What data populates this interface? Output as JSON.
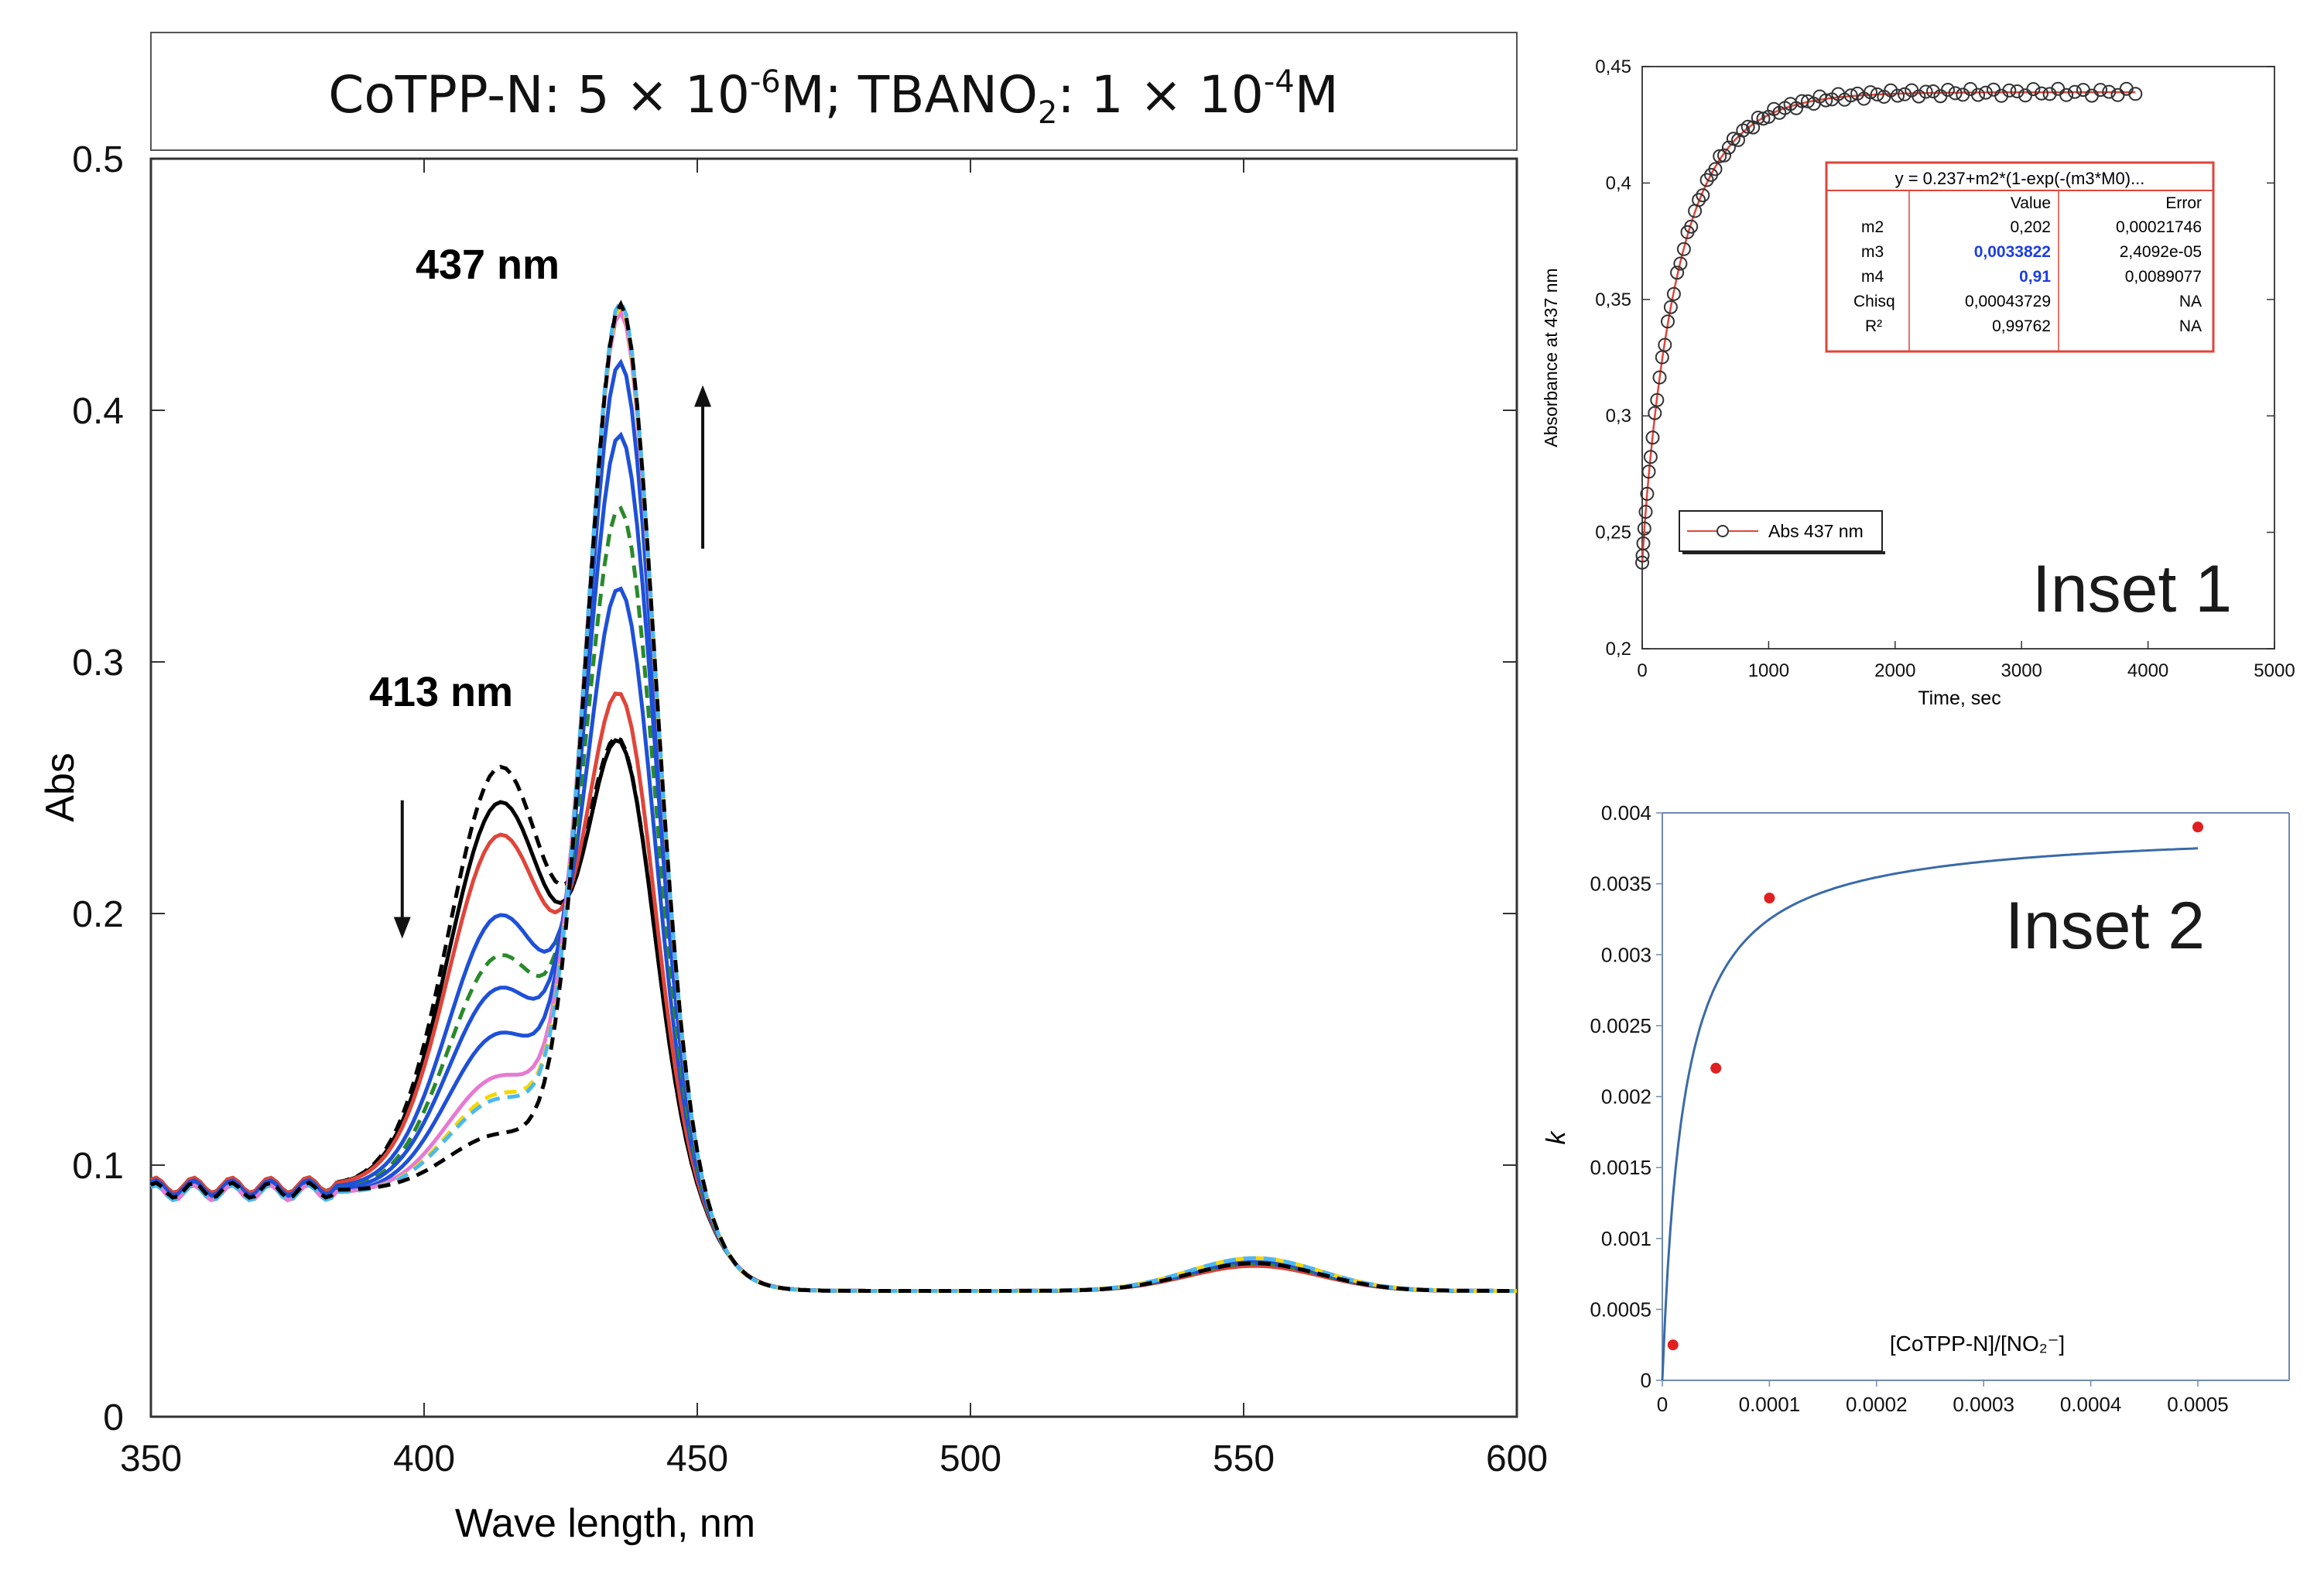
{
  "chart_data": [
    {
      "id": "main",
      "type": "line",
      "title_prefix": "CoTPP-N:  5 × 10",
      "title_exp1": "-6",
      "title_mid": "M;  TBANO",
      "title_sub": "2",
      "title_mid2": ": 1 × 10",
      "title_exp2": "-4",
      "title_suffix": "M",
      "xlabel": "Wave length, nm",
      "ylabel": "Abs",
      "xlim": [
        350,
        600
      ],
      "ylim": [
        0,
        0.5
      ],
      "xticks": [
        350,
        400,
        450,
        500,
        550,
        600
      ],
      "yticks": [
        0,
        0.1,
        0.2,
        0.3,
        0.4,
        0.5
      ],
      "xtick_labels": [
        "350",
        "400",
        "450",
        "500",
        "550",
        "600"
      ],
      "ytick_labels": [
        "0",
        "0.1",
        "0.2",
        "0.3",
        "0.4",
        "0.5"
      ],
      "annotations": [
        {
          "text": "437 nm",
          "x": 435,
          "y": 0.455
        },
        {
          "text": "413 nm",
          "x": 407,
          "y": 0.28
        }
      ],
      "arrows": [
        {
          "x": 396,
          "from": 0.245,
          "to": 0.19
        },
        {
          "x": 451,
          "from": 0.345,
          "to": 0.41
        }
      ],
      "isosbestic": 425,
      "curves": [
        {
          "color": "#000000",
          "dash": true,
          "base": 0.092,
          "a": 0.258,
          "b": 0.258,
          "q": 0.062
        },
        {
          "color": "#000000",
          "dash": false,
          "base": 0.092,
          "a": 0.244,
          "b": 0.258,
          "q": 0.06
        },
        {
          "color": "#e0453a",
          "dash": false,
          "base": 0.092,
          "a": 0.231,
          "b": 0.278,
          "q": 0.06
        },
        {
          "color": "#1e50d8",
          "dash": false,
          "base": 0.091,
          "a": 0.199,
          "b": 0.322,
          "q": 0.061
        },
        {
          "color": "#2a8a2a",
          "dash": true,
          "base": 0.09,
          "a": 0.183,
          "b": 0.355,
          "q": 0.061
        },
        {
          "color": "#1e50d8",
          "dash": false,
          "base": 0.09,
          "a": 0.17,
          "b": 0.385,
          "q": 0.062
        },
        {
          "color": "#1e50d8",
          "dash": false,
          "base": 0.089,
          "a": 0.152,
          "b": 0.415,
          "q": 0.062
        },
        {
          "color": "#e67ad2",
          "dash": false,
          "base": 0.089,
          "a": 0.135,
          "b": 0.436,
          "q": 0.063
        },
        {
          "color": "#f5d800",
          "dash": true,
          "base": 0.089,
          "a": 0.128,
          "b": 0.439,
          "q": 0.063
        },
        {
          "color": "#4bb8f0",
          "dash": true,
          "base": 0.089,
          "a": 0.126,
          "b": 0.441,
          "q": 0.063
        },
        {
          "color": "#000000",
          "dash": true,
          "base": 0.09,
          "a": 0.112,
          "b": 0.441,
          "q": 0.061
        }
      ]
    },
    {
      "id": "inset1",
      "type": "scatter",
      "label": "Inset 1",
      "xlabel": "Time, sec",
      "ylabel": "Absorbance at  437 nm",
      "xlim": [
        0,
        5000
      ],
      "ylim": [
        0.2,
        0.45
      ],
      "xticks": [
        0,
        1000,
        2000,
        3000,
        4000,
        5000
      ],
      "yticks": [
        0.2,
        0.25,
        0.3,
        0.35,
        0.4,
        0.45
      ],
      "xtick_labels": [
        "0",
        "1000",
        "2000",
        "3000",
        "4000",
        "5000"
      ],
      "ytick_labels": [
        "0,2",
        "0,25",
        "0,3",
        "0,35",
        "0,4",
        "0,45"
      ],
      "legend": "Abs 437 nm",
      "legend_position": "bottom-left",
      "fit": {
        "y0": 0.237,
        "m2": 0.202,
        "m3": 0.0033822,
        "m4": 0.91
      },
      "fit_table": {
        "equation": "y = 0.237+m2*(1-exp(-(m3*M0)...",
        "headers": [
          "",
          "Value",
          "Error"
        ],
        "rows": [
          [
            "m2",
            "0,202",
            "0,00021746"
          ],
          [
            "m3",
            "0,0033822",
            "2,4092e-05"
          ],
          [
            "m4",
            "0,91",
            "0,0089077"
          ],
          [
            "Chisq",
            "0,00043729",
            "NA"
          ],
          [
            "R²",
            "0,99762",
            "NA"
          ]
        ]
      },
      "points_t_max": 3900,
      "point_count": 90,
      "line_color": "#e0453a"
    },
    {
      "id": "inset2",
      "type": "scatter",
      "label": "Inset 2",
      "xlabel": "[CoTPP-N]/[NO₂⁻]",
      "ylabel": "k",
      "xlim": [
        0,
        0.0005
      ],
      "ylim": [
        0,
        0.004
      ],
      "xticks": [
        0,
        0.0001,
        0.0002,
        0.0003,
        0.0004,
        0.0005
      ],
      "yticks": [
        0,
        0.0005,
        0.001,
        0.0015,
        0.002,
        0.0025,
        0.003,
        0.0035,
        0.004
      ],
      "xtick_labels": [
        "0",
        "0.0001",
        "0.0002",
        "0.0003",
        "0.0004",
        "0.0005"
      ],
      "ytick_labels": [
        "0",
        "0.0005",
        "0.001",
        "0.0015",
        "0.002",
        "0.0025",
        "0.003",
        "0.0035",
        "0.004"
      ],
      "points": [
        {
          "x": 1e-05,
          "y": 0.00025
        },
        {
          "x": 5e-05,
          "y": 0.0022
        },
        {
          "x": 0.0001,
          "y": 0.0034
        },
        {
          "x": 0.0005,
          "y": 0.0039
        }
      ],
      "curve": {
        "kmax": 0.0039,
        "K": 2e-05
      },
      "curve_color": "#3a6aa8",
      "point_color": "#e02020"
    }
  ]
}
